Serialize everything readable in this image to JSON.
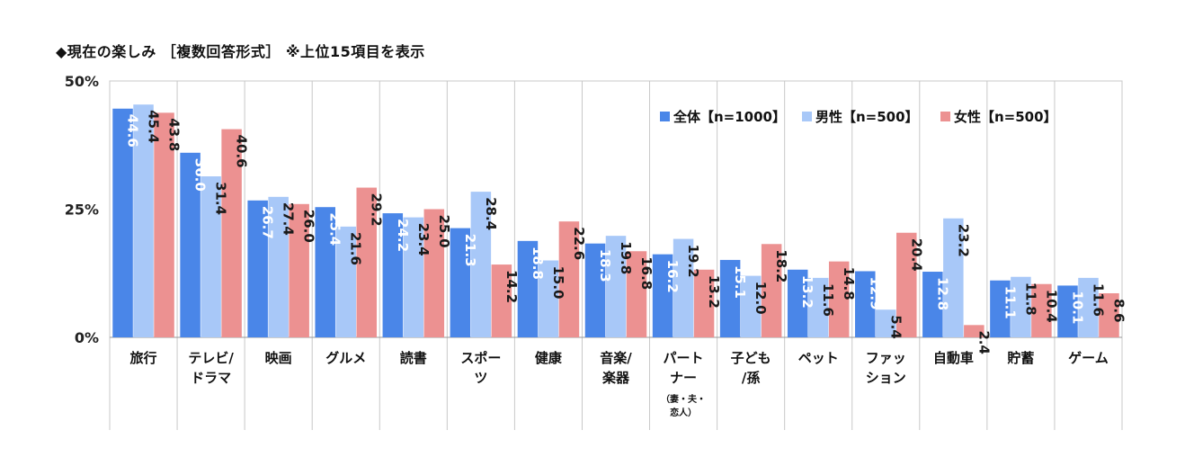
{
  "chart_data": {
    "type": "bar",
    "title": "◆現在の楽しみ ［複数回答形式］ ※上位15項目を表示",
    "xlabel": "",
    "ylabel": "",
    "ylim": [
      0,
      50
    ],
    "yticks": [
      "0%",
      "25%",
      "50%"
    ],
    "yticks_values": [
      0,
      25,
      50
    ],
    "grid": "vertical-separators",
    "legend_position": "top-right",
    "categories": [
      [
        "旅行"
      ],
      [
        "テレビ/",
        "ドラマ"
      ],
      [
        "映画"
      ],
      [
        "グルメ"
      ],
      [
        "読書"
      ],
      [
        "スポー",
        "ツ"
      ],
      [
        "健康"
      ],
      [
        "音楽/",
        "楽器"
      ],
      [
        "パート",
        "ナー",
        "（妻・夫・",
        "恋人）"
      ],
      [
        "子ども",
        "/孫"
      ],
      [
        "ペット"
      ],
      [
        "ファッ",
        "ション"
      ],
      [
        "自動車"
      ],
      [
        "貯蓄"
      ],
      [
        "ゲーム"
      ]
    ],
    "series": [
      {
        "name": "全体【n=1000】",
        "color": "#4a86e8",
        "values": [
          44.6,
          36.0,
          26.7,
          25.4,
          24.2,
          21.3,
          18.8,
          18.3,
          16.2,
          15.1,
          13.2,
          12.9,
          12.8,
          11.1,
          10.1
        ]
      },
      {
        "name": "男性【n=500】",
        "color": "#a8c8f8",
        "values": [
          45.4,
          31.4,
          27.4,
          21.6,
          23.4,
          28.4,
          15.0,
          19.8,
          19.2,
          12.0,
          11.6,
          5.4,
          23.2,
          11.8,
          11.6
        ]
      },
      {
        "name": "女性【n=500】",
        "color": "#ec9191",
        "values": [
          43.8,
          40.6,
          26.0,
          29.2,
          25.0,
          14.2,
          22.6,
          16.8,
          13.2,
          18.2,
          14.8,
          20.4,
          2.4,
          10.4,
          8.6
        ]
      }
    ],
    "label_colors": [
      "#ffffff",
      "#1a1a1a",
      "#1a1a1a"
    ]
  }
}
